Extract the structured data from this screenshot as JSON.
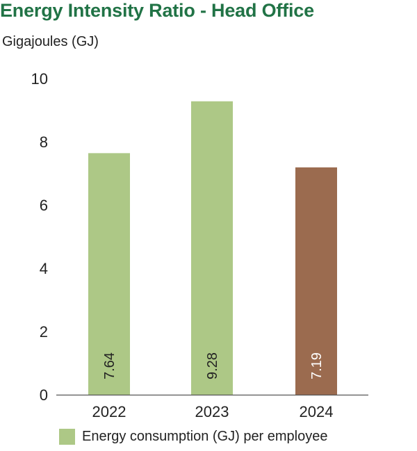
{
  "chart_data": {
    "type": "bar",
    "title": "Energy Intensity Ratio - Head Office",
    "subtitle": "Gigajoules (GJ)",
    "xlabel": "",
    "ylabel": "",
    "categories": [
      "2022",
      "2023",
      "2024"
    ],
    "series": [
      {
        "name": "Energy consumption (GJ) per employee",
        "values": [
          7.64,
          9.28,
          7.19
        ],
        "colors": [
          "#adc886",
          "#adc886",
          "#9b6b4f"
        ]
      }
    ],
    "data_labels": [
      "7.64",
      "9.28",
      "7.19"
    ],
    "ylim": [
      0,
      10
    ],
    "yticks": [
      0,
      2,
      4,
      6,
      8,
      10
    ],
    "grid": false,
    "legend_position": "bottom",
    "legend_color": "#adc886",
    "colors": {
      "title": "#217346",
      "text": "#222222",
      "axis": "#555555",
      "label_on_dark": "#ffffff"
    }
  }
}
